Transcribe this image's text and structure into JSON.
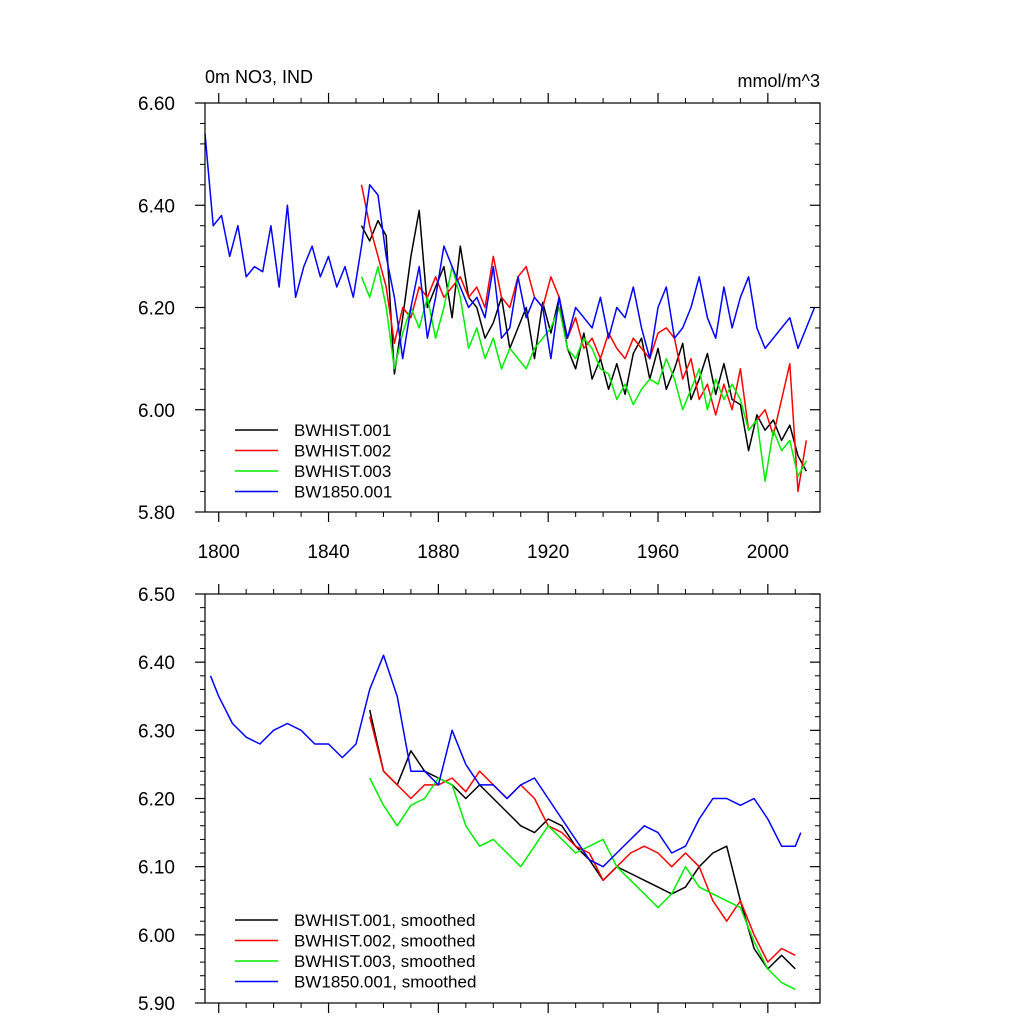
{
  "chart_data": [
    {
      "type": "line",
      "title": "0m NO3, IND",
      "units": "mmol/m^3",
      "xlim": [
        1795,
        2019
      ],
      "ylim": [
        5.8,
        6.6
      ],
      "xticks": [
        1800,
        1840,
        1880,
        1920,
        1960,
        2000
      ],
      "yticks": [
        "5.80",
        "6.00",
        "6.20",
        "6.40",
        "6.60"
      ],
      "legend_placement": "bottom-left",
      "series": [
        {
          "name": "BWHIST.001",
          "color": "#000000",
          "x": [
            1852,
            1855,
            1858,
            1861,
            1864,
            1867,
            1870,
            1873,
            1876,
            1879,
            1882,
            1885,
            1888,
            1891,
            1894,
            1897,
            1900,
            1903,
            1906,
            1909,
            1912,
            1915,
            1918,
            1921,
            1924,
            1927,
            1930,
            1933,
            1936,
            1939,
            1942,
            1945,
            1948,
            1951,
            1954,
            1957,
            1960,
            1963,
            1966,
            1969,
            1972,
            1975,
            1978,
            1981,
            1984,
            1987,
            1990,
            1993,
            1996,
            1999,
            2002,
            2005,
            2008,
            2011,
            2014
          ],
          "y": [
            6.36,
            6.33,
            6.37,
            6.34,
            6.07,
            6.18,
            6.3,
            6.39,
            6.2,
            6.24,
            6.28,
            6.18,
            6.32,
            6.22,
            6.2,
            6.14,
            6.17,
            6.22,
            6.12,
            6.16,
            6.2,
            6.1,
            6.21,
            6.15,
            6.22,
            6.12,
            6.08,
            6.15,
            6.06,
            6.1,
            6.04,
            6.09,
            6.03,
            6.11,
            6.14,
            6.06,
            6.12,
            6.04,
            6.08,
            6.13,
            6.02,
            6.06,
            6.11,
            6.03,
            6.09,
            6.02,
            6.01,
            5.92,
            5.99,
            5.96,
            5.98,
            5.94,
            5.97,
            5.91,
            5.88
          ]
        },
        {
          "name": "BWHIST.002",
          "color": "#ff0000",
          "x": [
            1852,
            1855,
            1858,
            1861,
            1864,
            1867,
            1870,
            1873,
            1876,
            1879,
            1882,
            1885,
            1888,
            1891,
            1894,
            1897,
            1900,
            1903,
            1906,
            1909,
            1912,
            1915,
            1918,
            1921,
            1924,
            1927,
            1930,
            1933,
            1936,
            1939,
            1942,
            1945,
            1948,
            1951,
            1954,
            1957,
            1960,
            1963,
            1966,
            1969,
            1972,
            1975,
            1978,
            1981,
            1984,
            1987,
            1990,
            1993,
            1996,
            1999,
            2002,
            2005,
            2008,
            2011,
            2014
          ],
          "y": [
            6.44,
            6.36,
            6.3,
            6.24,
            6.13,
            6.2,
            6.18,
            6.24,
            6.22,
            6.26,
            6.22,
            6.24,
            6.26,
            6.22,
            6.24,
            6.2,
            6.3,
            6.22,
            6.2,
            6.26,
            6.28,
            6.22,
            6.2,
            6.26,
            6.22,
            6.14,
            6.18,
            6.12,
            6.14,
            6.1,
            6.15,
            6.12,
            6.1,
            6.14,
            6.12,
            6.1,
            6.15,
            6.16,
            6.14,
            6.06,
            6.1,
            6.02,
            6.05,
            5.99,
            6.05,
            6.0,
            6.08,
            5.96,
            5.98,
            6.0,
            5.95,
            6.02,
            6.09,
            5.84,
            5.94
          ]
        },
        {
          "name": "BWHIST.003",
          "color": "#00ee00",
          "x": [
            1852,
            1855,
            1858,
            1861,
            1864,
            1867,
            1870,
            1873,
            1876,
            1879,
            1882,
            1885,
            1888,
            1891,
            1894,
            1897,
            1900,
            1903,
            1906,
            1909,
            1912,
            1915,
            1918,
            1921,
            1924,
            1927,
            1930,
            1933,
            1936,
            1939,
            1942,
            1945,
            1948,
            1951,
            1954,
            1957,
            1960,
            1963,
            1966,
            1969,
            1972,
            1975,
            1978,
            1981,
            1984,
            1987,
            1990,
            1993,
            1996,
            1999,
            2002,
            2005,
            2008,
            2011,
            2014
          ],
          "y": [
            6.26,
            6.22,
            6.28,
            6.2,
            6.08,
            6.15,
            6.2,
            6.16,
            6.22,
            6.14,
            6.2,
            6.28,
            6.22,
            6.12,
            6.16,
            6.1,
            6.14,
            6.08,
            6.12,
            6.1,
            6.08,
            6.12,
            6.14,
            6.16,
            6.2,
            6.12,
            6.1,
            6.14,
            6.12,
            6.08,
            6.07,
            6.02,
            6.05,
            6.01,
            6.04,
            6.06,
            6.05,
            6.1,
            6.06,
            6.0,
            6.04,
            6.08,
            6.0,
            6.06,
            6.02,
            6.05,
            6.02,
            5.96,
            5.98,
            5.86,
            5.96,
            5.92,
            5.94,
            5.87,
            5.9
          ]
        },
        {
          "name": "BW1850.001",
          "color": "#0000ff",
          "x": [
            1795,
            1798,
            1801,
            1804,
            1807,
            1810,
            1813,
            1816,
            1819,
            1822,
            1825,
            1828,
            1831,
            1834,
            1837,
            1840,
            1843,
            1846,
            1849,
            1852,
            1855,
            1858,
            1861,
            1864,
            1867,
            1870,
            1873,
            1876,
            1879,
            1882,
            1885,
            1888,
            1891,
            1894,
            1897,
            1900,
            1903,
            1906,
            1909,
            1912,
            1915,
            1918,
            1921,
            1924,
            1927,
            1930,
            1933,
            1936,
            1939,
            1942,
            1945,
            1948,
            1951,
            1954,
            1957,
            1960,
            1963,
            1966,
            1969,
            1972,
            1975,
            1978,
            1981,
            1984,
            1987,
            1990,
            1993,
            1996,
            1999,
            2002,
            2005,
            2008,
            2011,
            2014,
            2017
          ],
          "y": [
            6.54,
            6.36,
            6.38,
            6.3,
            6.36,
            6.26,
            6.28,
            6.27,
            6.36,
            6.24,
            6.4,
            6.22,
            6.28,
            6.32,
            6.26,
            6.3,
            6.24,
            6.28,
            6.22,
            6.32,
            6.44,
            6.42,
            6.3,
            6.22,
            6.1,
            6.2,
            6.28,
            6.14,
            6.22,
            6.32,
            6.28,
            6.24,
            6.2,
            6.22,
            6.18,
            6.28,
            6.14,
            6.16,
            6.26,
            6.18,
            6.22,
            6.2,
            6.1,
            6.22,
            6.14,
            6.2,
            6.18,
            6.16,
            6.22,
            6.14,
            6.2,
            6.18,
            6.24,
            6.16,
            6.1,
            6.2,
            6.24,
            6.14,
            6.16,
            6.2,
            6.26,
            6.18,
            6.14,
            6.24,
            6.16,
            6.22,
            6.26,
            6.16,
            6.12,
            6.14,
            6.16,
            6.18,
            6.12,
            6.16,
            6.2
          ]
        }
      ]
    },
    {
      "type": "line",
      "title": "",
      "xlim": [
        1795,
        2019
      ],
      "ylim": [
        5.9,
        6.5
      ],
      "xticks": [
        1800,
        1840,
        1880,
        1920,
        1960,
        2000
      ],
      "yticks": [
        "5.90",
        "6.00",
        "6.10",
        "6.20",
        "6.30",
        "6.40",
        "6.50"
      ],
      "legend_placement": "bottom-left",
      "series": [
        {
          "name": "BWHIST.001, smoothed",
          "color": "#000000",
          "x": [
            1855,
            1860,
            1865,
            1870,
            1875,
            1880,
            1885,
            1890,
            1895,
            1900,
            1905,
            1910,
            1915,
            1920,
            1925,
            1930,
            1935,
            1940,
            1945,
            1950,
            1955,
            1960,
            1965,
            1970,
            1975,
            1980,
            1985,
            1990,
            1995,
            2000,
            2005,
            2010
          ],
          "y": [
            6.33,
            6.24,
            6.22,
            6.27,
            6.24,
            6.23,
            6.22,
            6.2,
            6.22,
            6.2,
            6.18,
            6.16,
            6.15,
            6.17,
            6.16,
            6.13,
            6.11,
            6.08,
            6.1,
            6.09,
            6.08,
            6.07,
            6.06,
            6.07,
            6.1,
            6.12,
            6.13,
            6.05,
            5.98,
            5.95,
            5.97,
            5.95
          ]
        },
        {
          "name": "BWHIST.002, smoothed",
          "color": "#ff0000",
          "x": [
            1855,
            1860,
            1865,
            1870,
            1875,
            1880,
            1885,
            1890,
            1895,
            1900,
            1905,
            1910,
            1915,
            1920,
            1925,
            1930,
            1935,
            1940,
            1945,
            1950,
            1955,
            1960,
            1965,
            1970,
            1975,
            1980,
            1985,
            1990,
            1995,
            2000,
            2005,
            2010
          ],
          "y": [
            6.32,
            6.24,
            6.22,
            6.2,
            6.22,
            6.22,
            6.23,
            6.21,
            6.24,
            6.22,
            6.2,
            6.22,
            6.2,
            6.16,
            6.15,
            6.13,
            6.12,
            6.08,
            6.1,
            6.12,
            6.13,
            6.12,
            6.1,
            6.12,
            6.1,
            6.05,
            6.02,
            6.05,
            6.0,
            5.96,
            5.98,
            5.97
          ]
        },
        {
          "name": "BWHIST.003, smoothed",
          "color": "#00ee00",
          "x": [
            1855,
            1860,
            1865,
            1870,
            1875,
            1880,
            1885,
            1890,
            1895,
            1900,
            1905,
            1910,
            1915,
            1920,
            1925,
            1930,
            1935,
            1940,
            1945,
            1950,
            1955,
            1960,
            1965,
            1970,
            1975,
            1980,
            1985,
            1990,
            1995,
            2000,
            2005,
            2010
          ],
          "y": [
            6.23,
            6.19,
            6.16,
            6.19,
            6.2,
            6.23,
            6.22,
            6.16,
            6.13,
            6.14,
            6.12,
            6.1,
            6.13,
            6.16,
            6.14,
            6.12,
            6.13,
            6.14,
            6.1,
            6.08,
            6.06,
            6.04,
            6.06,
            6.1,
            6.07,
            6.06,
            6.05,
            6.04,
            5.99,
            5.95,
            5.93,
            5.92
          ]
        },
        {
          "name": "BW1850.001, smoothed",
          "color": "#0000ff",
          "x": [
            1797,
            1800,
            1805,
            1810,
            1815,
            1820,
            1825,
            1830,
            1835,
            1840,
            1845,
            1850,
            1855,
            1860,
            1865,
            1870,
            1875,
            1880,
            1885,
            1890,
            1895,
            1900,
            1905,
            1910,
            1915,
            1920,
            1925,
            1930,
            1935,
            1940,
            1945,
            1950,
            1955,
            1960,
            1965,
            1970,
            1975,
            1980,
            1985,
            1990,
            1995,
            2000,
            2005,
            2010,
            2012
          ],
          "y": [
            6.38,
            6.35,
            6.31,
            6.29,
            6.28,
            6.3,
            6.31,
            6.3,
            6.28,
            6.28,
            6.26,
            6.28,
            6.36,
            6.41,
            6.35,
            6.24,
            6.24,
            6.22,
            6.3,
            6.25,
            6.22,
            6.22,
            6.2,
            6.22,
            6.23,
            6.2,
            6.17,
            6.14,
            6.11,
            6.1,
            6.12,
            6.14,
            6.16,
            6.15,
            6.12,
            6.13,
            6.17,
            6.2,
            6.2,
            6.19,
            6.2,
            6.17,
            6.13,
            6.13,
            6.15
          ]
        }
      ]
    }
  ]
}
